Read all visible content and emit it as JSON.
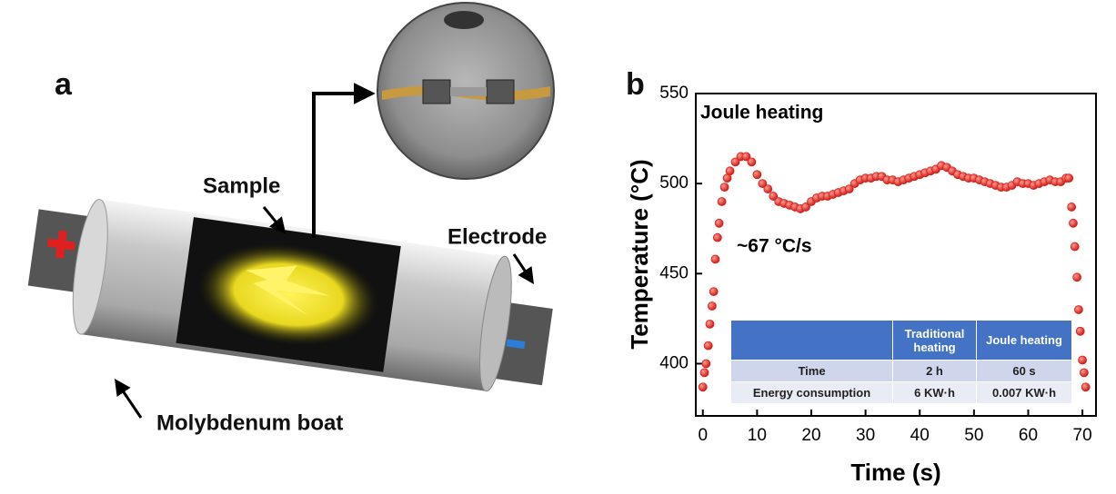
{
  "panel_a": {
    "label": "a",
    "sample_label": "Sample",
    "electrode_label": "Electrode",
    "boat_label": "Molybdenum boat"
  },
  "chart_data": {
    "type": "scatter",
    "panel_label": "b",
    "annotation": "Joule heating",
    "rate_annotation": "~67 °C/s",
    "x_label": "Time (s)",
    "y_label": "Temperature (°C)",
    "color": "#e0201b",
    "xlim": [
      -1.3,
      72.5
    ],
    "ylim": [
      371,
      550
    ],
    "xticks": [
      0,
      10,
      20,
      30,
      40,
      50,
      60,
      70
    ],
    "yticks": [
      400,
      450,
      500,
      550
    ],
    "x": [
      0,
      0.3,
      0.6,
      1,
      1.3,
      1.7,
      2,
      2.3,
      2.7,
      3,
      3.5,
      4,
      4.5,
      5,
      6,
      7,
      8,
      9,
      10,
      11,
      12,
      13,
      14,
      15,
      16,
      17,
      18,
      19,
      20,
      21,
      22,
      23,
      24,
      25,
      26,
      27,
      28,
      29,
      30,
      31,
      32,
      33,
      34,
      35,
      36,
      37,
      38,
      39,
      40,
      41,
      42,
      43,
      44,
      45,
      46,
      47,
      48,
      49,
      50,
      51,
      52,
      53,
      54,
      55,
      56,
      57,
      58,
      59,
      60,
      61,
      62,
      63,
      64,
      65,
      66,
      67,
      67.5,
      68,
      68.3,
      68.6,
      69,
      69.3,
      69.6,
      70,
      70.3,
      70.6
    ],
    "y": [
      387,
      395,
      400,
      410,
      422,
      432,
      440,
      458,
      470,
      478,
      490,
      498,
      503,
      507,
      512,
      515,
      515,
      512,
      505,
      500,
      497,
      493,
      490,
      489,
      488,
      487,
      486,
      487,
      490,
      492,
      493,
      493,
      494,
      495,
      496,
      497,
      500,
      502,
      503,
      503,
      504,
      504,
      502,
      502,
      501,
      502,
      503,
      504,
      505,
      506,
      507,
      508,
      510,
      509,
      507,
      505,
      504,
      503,
      503,
      502,
      501,
      500,
      499,
      498,
      498,
      499,
      501,
      500,
      500,
      499,
      500,
      501,
      502,
      501,
      501,
      503,
      503,
      487,
      478,
      465,
      448,
      430,
      418,
      402,
      395,
      387
    ],
    "table": {
      "headers": [
        "Traditional heating",
        "Joule heating"
      ],
      "rows": [
        [
          "Time",
          "2 h",
          "60 s"
        ],
        [
          "Energy consumption",
          "6 KW·h",
          "0.007 KW·h"
        ]
      ]
    }
  }
}
